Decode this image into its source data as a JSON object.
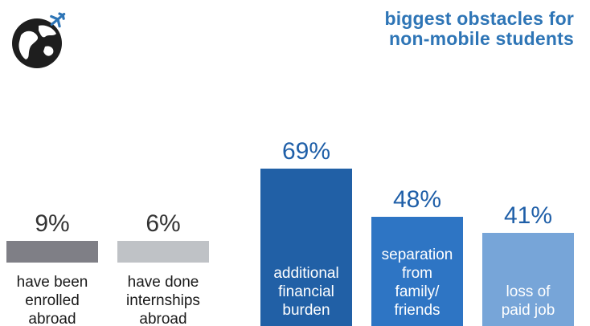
{
  "header": {
    "title_lines": [
      "biggest obstacles for",
      "non-mobile students"
    ]
  },
  "logo": {
    "icon": "globe-with-airplane-icon"
  },
  "colors": {
    "title": "#2e75b6",
    "label_dark": "#2b2b2b",
    "label_blue": "#1f5fa8",
    "text_on_bar": "#ffffff"
  },
  "chart_data": {
    "type": "bar",
    "title": "biggest obstacles for non-mobile students",
    "ylim": [
      0,
      100
    ],
    "grid": false,
    "legend": "none",
    "bars": [
      {
        "label": "have been\nenrolled\nabroad",
        "value": 9,
        "value_label": "9%",
        "color": "#7f7f86",
        "label_inside": false
      },
      {
        "label": "have done\ninternships\nabroad",
        "value": 6,
        "value_label": "6%",
        "color": "#bfc2c6",
        "label_inside": false
      },
      {
        "label": "additional\nfinancial\nburden",
        "value": 69,
        "value_label": "69%",
        "color": "#2160a6",
        "label_inside": true
      },
      {
        "label": "separation\nfrom\nfamily/\nfriends",
        "value": 48,
        "value_label": "48%",
        "color": "#2e75c4",
        "label_inside": true
      },
      {
        "label": "loss of\npaid job",
        "value": 41,
        "value_label": "41%",
        "color": "#77a5d8",
        "label_inside": true
      }
    ]
  }
}
